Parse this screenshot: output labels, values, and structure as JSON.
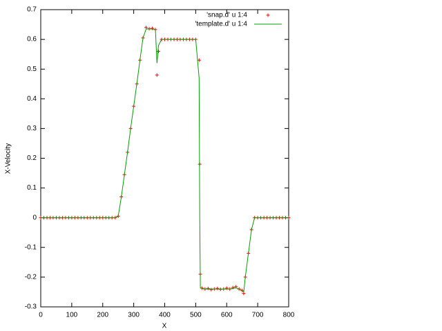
{
  "chart_data": {
    "type": "line",
    "xlabel": "X",
    "ylabel": "X-Velocity",
    "x": [
      0,
      10,
      20,
      30,
      40,
      50,
      60,
      70,
      80,
      90,
      100,
      110,
      120,
      130,
      140,
      150,
      160,
      170,
      180,
      190,
      200,
      210,
      220,
      230,
      240,
      250,
      260,
      270,
      280,
      290,
      300,
      310,
      320,
      330,
      340,
      350,
      360,
      370,
      375,
      380,
      390,
      400,
      410,
      420,
      430,
      440,
      450,
      460,
      470,
      480,
      490,
      500,
      511,
      513,
      515,
      520,
      530,
      540,
      550,
      560,
      570,
      580,
      590,
      600,
      610,
      620,
      630,
      640,
      650,
      655,
      660,
      670,
      680,
      690,
      700,
      710,
      720,
      730,
      740,
      750,
      760,
      770,
      780,
      790,
      800
    ],
    "series": [
      {
        "name": "'snap.d' u 1:4",
        "color": "#ff0000",
        "style": "points",
        "values": [
          0,
          0,
          0,
          0,
          0,
          0,
          0,
          0,
          0,
          0,
          0,
          0,
          0,
          0,
          0,
          0,
          0,
          0,
          0,
          0,
          0,
          0,
          0,
          0,
          0,
          0.005,
          0.07,
          0.145,
          0.22,
          0.3,
          0.375,
          0.45,
          0.53,
          0.605,
          0.64,
          0.636,
          0.637,
          0.633,
          0.48,
          0.56,
          0.6,
          0.6,
          0.6,
          0.6,
          0.6,
          0.6,
          0.6,
          0.6,
          0.6,
          0.6,
          0.6,
          0.6,
          0.53,
          0.18,
          -0.19,
          -0.237,
          -0.24,
          -0.238,
          -0.242,
          -0.24,
          -0.238,
          -0.241,
          -0.24,
          -0.237,
          -0.24,
          -0.235,
          -0.232,
          -0.24,
          -0.245,
          -0.255,
          -0.2,
          -0.12,
          -0.04,
          0,
          0,
          0,
          0,
          0,
          0,
          0,
          0,
          0,
          0,
          0,
          0
        ]
      },
      {
        "name": "'template.d' u 1:4",
        "color": "#00a000",
        "style": "lines",
        "values": [
          0,
          0,
          0,
          0,
          0,
          0,
          0,
          0,
          0,
          0,
          0,
          0,
          0,
          0,
          0,
          0,
          0,
          0,
          0,
          0,
          0,
          0,
          0,
          0,
          0,
          0.005,
          0.07,
          0.145,
          0.22,
          0.3,
          0.375,
          0.45,
          0.53,
          0.605,
          0.635,
          0.635,
          0.635,
          0.633,
          0.52,
          0.58,
          0.6,
          0.6,
          0.6,
          0.6,
          0.6,
          0.6,
          0.6,
          0.6,
          0.6,
          0.6,
          0.6,
          0.6,
          0.47,
          0,
          -0.235,
          -0.238,
          -0.24,
          -0.24,
          -0.24,
          -0.24,
          -0.24,
          -0.24,
          -0.24,
          -0.24,
          -0.24,
          -0.238,
          -0.236,
          -0.24,
          -0.245,
          -0.25,
          -0.2,
          -0.12,
          -0.04,
          0,
          0,
          0,
          0,
          0,
          0,
          0,
          0,
          0,
          0,
          0,
          0
        ]
      }
    ],
    "xlim": [
      0,
      800
    ],
    "xticks": [
      0,
      100,
      200,
      300,
      400,
      500,
      600,
      700,
      800
    ],
    "ylim": [
      -0.3,
      0.7
    ],
    "yticks": [
      -0.3,
      -0.2,
      -0.1,
      0,
      0.1,
      0.2,
      0.3,
      0.4,
      0.5,
      0.6,
      0.7
    ],
    "legend": "top-right"
  }
}
